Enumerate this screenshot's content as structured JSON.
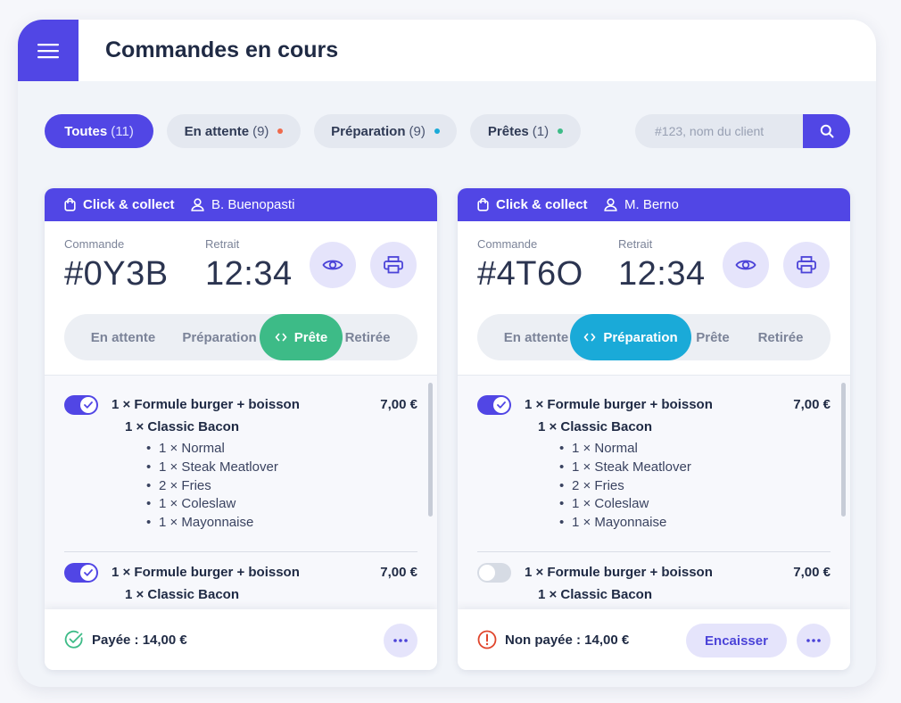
{
  "header": {
    "title": "Commandes en cours",
    "menu_icon": "hamburger-icon"
  },
  "filters": [
    {
      "label": "Toutes",
      "count": "(11)",
      "active": true
    },
    {
      "label": "En attente",
      "count": "(9)",
      "dot_color": "#ef6a4c"
    },
    {
      "label": "Préparation",
      "count": "(9)",
      "dot_color": "#1aaad8"
    },
    {
      "label": "Prêtes",
      "count": "(1)",
      "dot_color": "#3dbb87"
    }
  ],
  "search": {
    "placeholder": "#123, nom du client",
    "icon": "search-icon"
  },
  "labels": {
    "order": "Commande",
    "pickup": "Retrait"
  },
  "statuses": [
    "En attente",
    "Préparation",
    "Prête",
    "Retirée"
  ],
  "cards": [
    {
      "type": "Click & collect",
      "customer": "B. Buenopasti",
      "order_id": "#0Y3B",
      "pickup_time": "12:34",
      "active_status": "Prête",
      "items": [
        {
          "enabled": true,
          "title": "1 × Formule burger + boisson",
          "price": "7,00 €",
          "sub": "1 × Classic Bacon",
          "lines": [
            "1 × Normal",
            "1 × Steak Meatlover",
            "2 × Fries",
            "1 × Coleslaw",
            "1 × Mayonnaise"
          ]
        },
        {
          "enabled": true,
          "title": "1 × Formule burger + boisson",
          "price": "7,00 €",
          "sub": "1 × Classic Bacon"
        }
      ],
      "payment": {
        "status": "paid",
        "text": "Payée : 14,00 €"
      }
    },
    {
      "type": "Click & collect",
      "customer": "M. Berno",
      "order_id": "#4T6O",
      "pickup_time": "12:34",
      "active_status": "Préparation",
      "items": [
        {
          "enabled": true,
          "title": "1 × Formule burger + boisson",
          "price": "7,00 €",
          "sub": "1 × Classic Bacon",
          "lines": [
            "1 × Normal",
            "1 × Steak Meatlover",
            "2 × Fries",
            "1 × Coleslaw",
            "1 × Mayonnaise"
          ]
        },
        {
          "enabled": false,
          "title": "1 × Formule burger + boisson",
          "price": "7,00 €",
          "sub": "1 × Classic Bacon"
        }
      ],
      "payment": {
        "status": "unpaid",
        "text": "Non payée : 14,00 €",
        "action_label": "Encaisser"
      }
    }
  ],
  "colors": {
    "primary": "#5146e5",
    "ready": "#3dbb87",
    "preparing": "#1aaad8",
    "waiting": "#ef6a4c",
    "unpaid": "#e0452c"
  }
}
